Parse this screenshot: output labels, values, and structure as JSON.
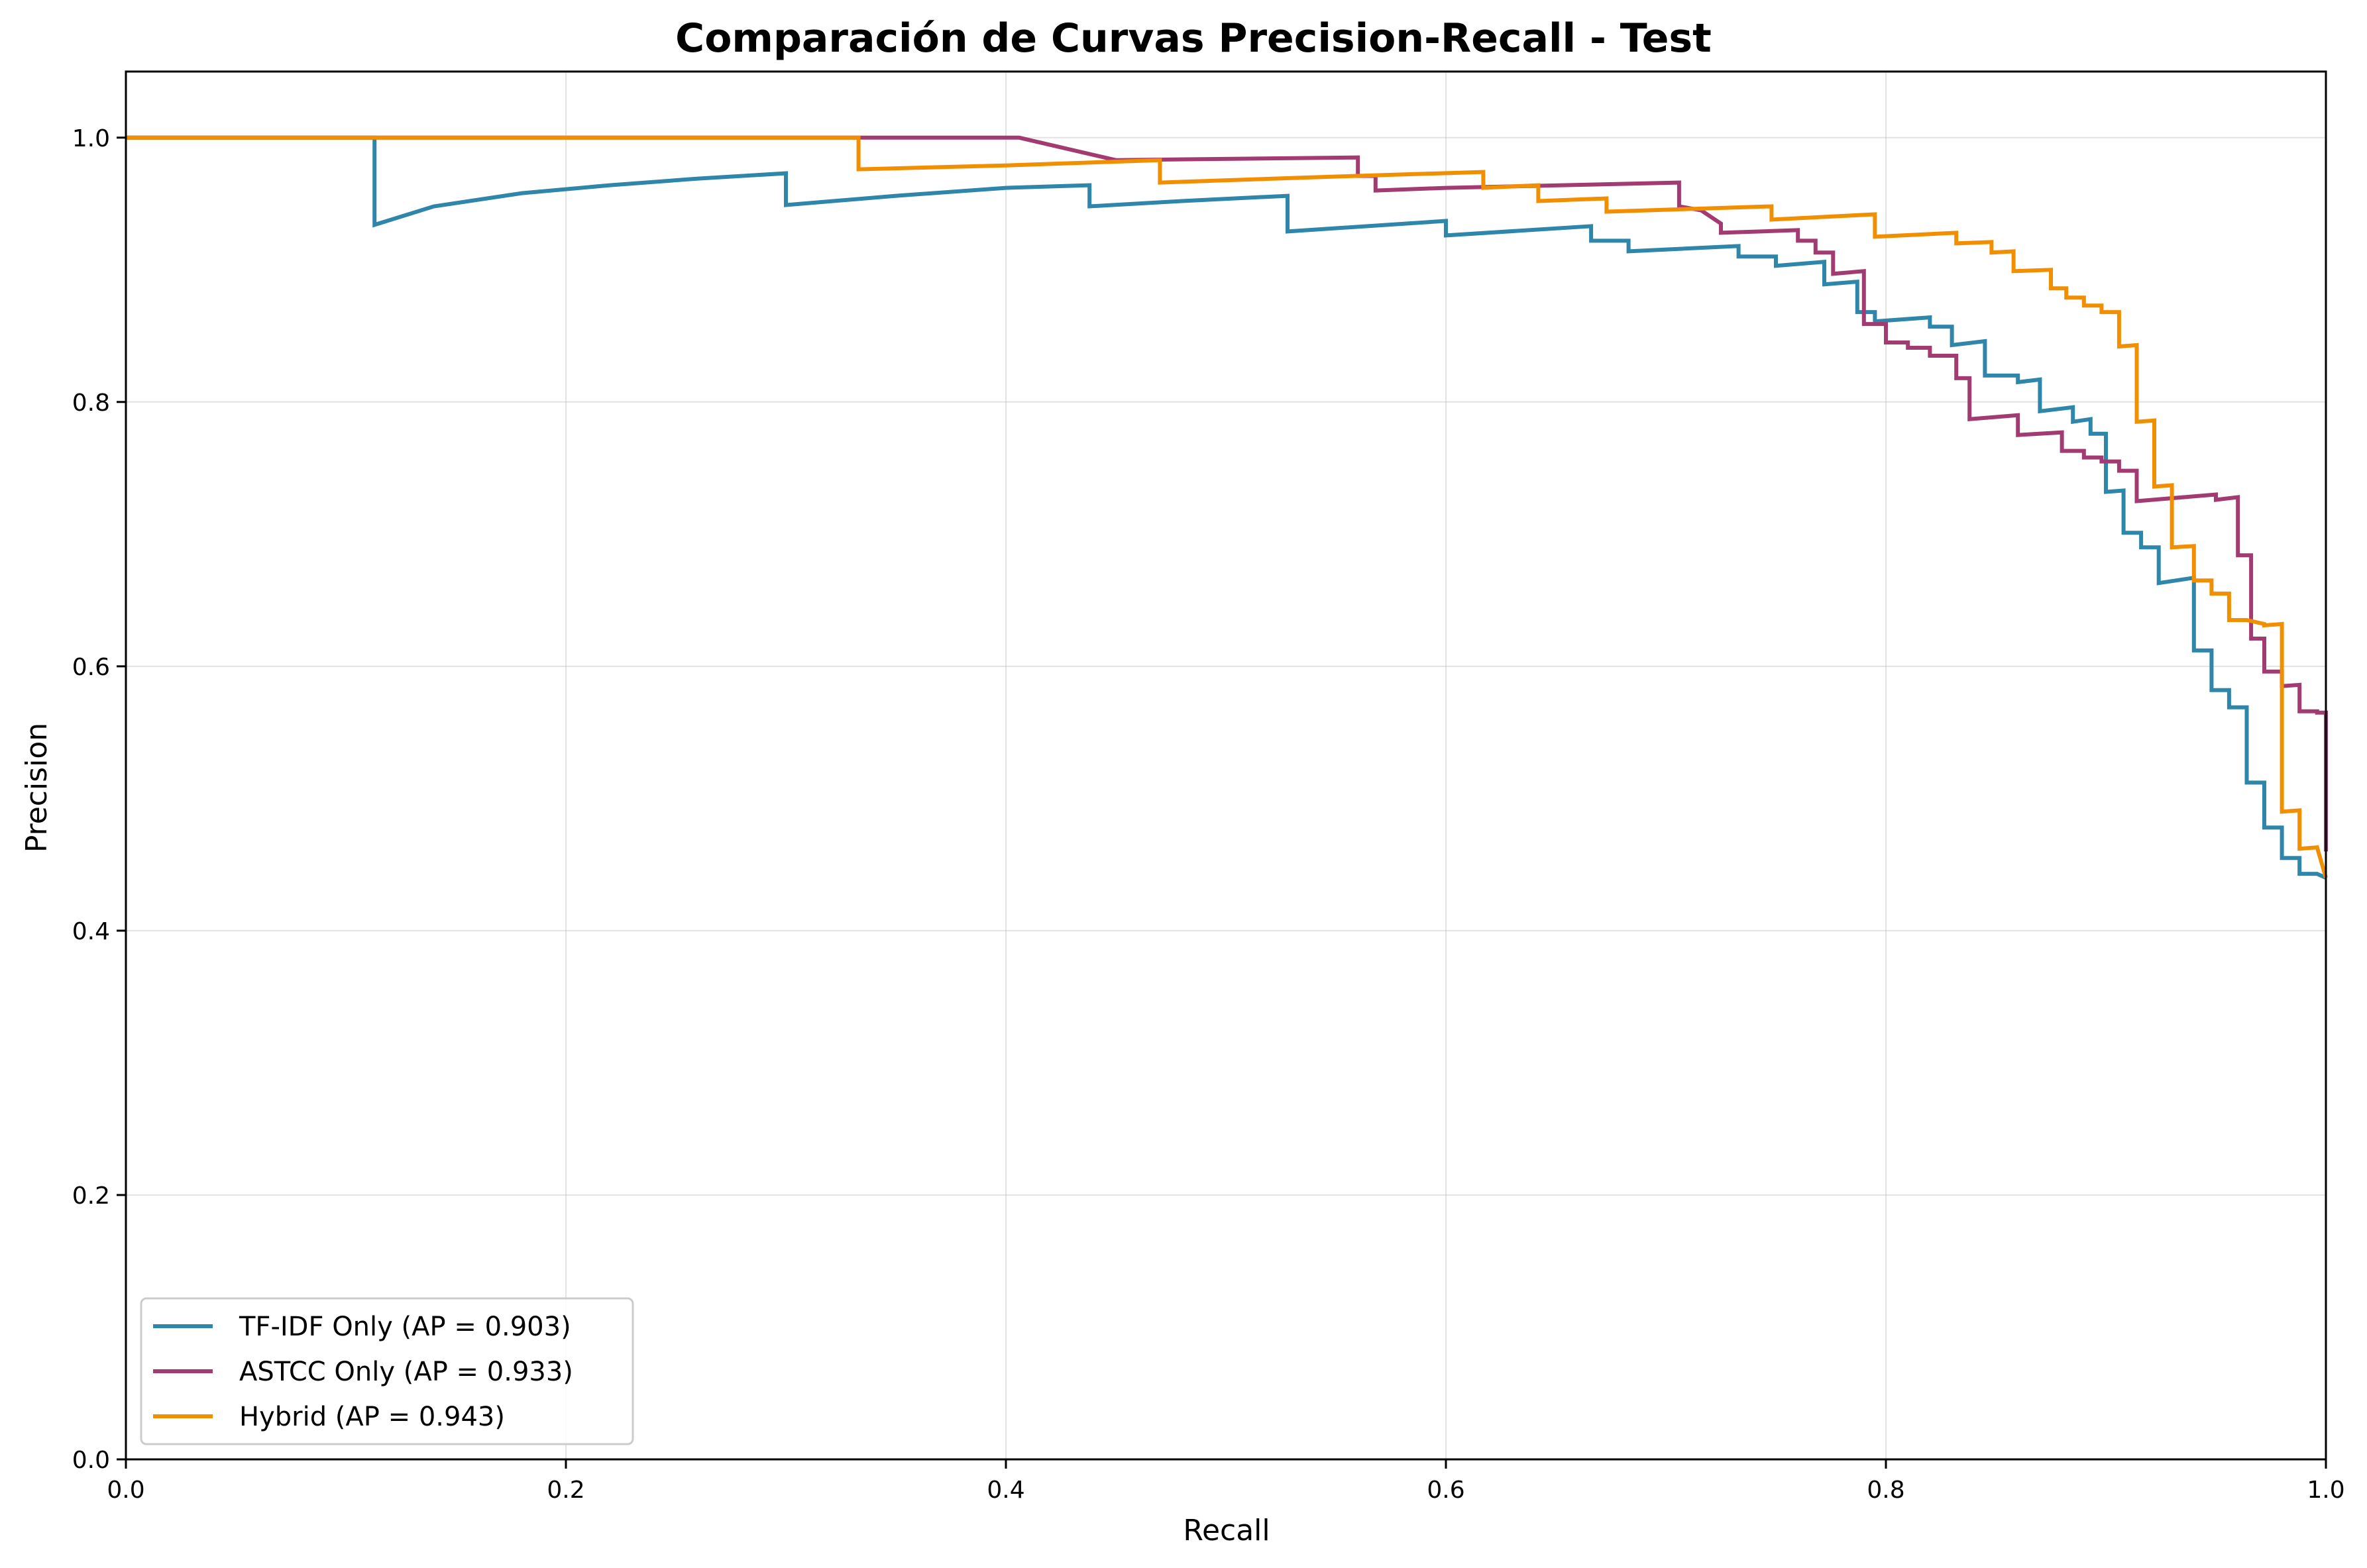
{
  "chart_data": {
    "type": "line",
    "title": "Comparación de Curvas Precision-Recall - Test",
    "xlabel": "Recall",
    "ylabel": "Precision",
    "xlim": [
      0.0,
      1.0
    ],
    "ylim": [
      0.0,
      1.05
    ],
    "xticks": [
      "0.0",
      "0.2",
      "0.4",
      "0.6",
      "0.8",
      "1.0"
    ],
    "yticks": [
      "0.0",
      "0.2",
      "0.4",
      "0.6",
      "0.8",
      "1.0"
    ],
    "grid": true,
    "legend_position": "lower-left",
    "series": [
      {
        "name": "TF-IDF Only (AP = 0.903)",
        "color": "#2e86ab",
        "points": [
          [
            0.0,
            1.0
          ],
          [
            0.113,
            1.0
          ],
          [
            0.113,
            0.934
          ],
          [
            0.14,
            0.948
          ],
          [
            0.18,
            0.958
          ],
          [
            0.22,
            0.964
          ],
          [
            0.26,
            0.969
          ],
          [
            0.3,
            0.973
          ],
          [
            0.3,
            0.949
          ],
          [
            0.35,
            0.956
          ],
          [
            0.4,
            0.962
          ],
          [
            0.438,
            0.964
          ],
          [
            0.438,
            0.948
          ],
          [
            0.48,
            0.952
          ],
          [
            0.528,
            0.956
          ],
          [
            0.528,
            0.929
          ],
          [
            0.6,
            0.937
          ],
          [
            0.6,
            0.926
          ],
          [
            0.666,
            0.933
          ],
          [
            0.666,
            0.922
          ],
          [
            0.683,
            0.922
          ],
          [
            0.683,
            0.914
          ],
          [
            0.733,
            0.918
          ],
          [
            0.733,
            0.91
          ],
          [
            0.75,
            0.91
          ],
          [
            0.75,
            0.903
          ],
          [
            0.772,
            0.906
          ],
          [
            0.772,
            0.889
          ],
          [
            0.787,
            0.891
          ],
          [
            0.787,
            0.868
          ],
          [
            0.795,
            0.868
          ],
          [
            0.795,
            0.861
          ],
          [
            0.82,
            0.864
          ],
          [
            0.82,
            0.857
          ],
          [
            0.83,
            0.857
          ],
          [
            0.83,
            0.843
          ],
          [
            0.845,
            0.846
          ],
          [
            0.845,
            0.82
          ],
          [
            0.86,
            0.82
          ],
          [
            0.86,
            0.815
          ],
          [
            0.87,
            0.817
          ],
          [
            0.87,
            0.793
          ],
          [
            0.885,
            0.796
          ],
          [
            0.885,
            0.785
          ],
          [
            0.893,
            0.787
          ],
          [
            0.893,
            0.776
          ],
          [
            0.9,
            0.776
          ],
          [
            0.9,
            0.732
          ],
          [
            0.908,
            0.733
          ],
          [
            0.908,
            0.701
          ],
          [
            0.916,
            0.701
          ],
          [
            0.916,
            0.69
          ],
          [
            0.924,
            0.69
          ],
          [
            0.924,
            0.663
          ],
          [
            0.94,
            0.667
          ],
          [
            0.94,
            0.612
          ],
          [
            0.948,
            0.612
          ],
          [
            0.948,
            0.582
          ],
          [
            0.956,
            0.582
          ],
          [
            0.956,
            0.569
          ],
          [
            0.964,
            0.569
          ],
          [
            0.964,
            0.512
          ],
          [
            0.972,
            0.512
          ],
          [
            0.972,
            0.478
          ],
          [
            0.98,
            0.478
          ],
          [
            0.98,
            0.455
          ],
          [
            0.988,
            0.455
          ],
          [
            0.988,
            0.443
          ],
          [
            0.996,
            0.443
          ],
          [
            1.0,
            0.44
          ]
        ]
      },
      {
        "name": "ASTCC Only (AP = 0.933)",
        "color": "#a23b72",
        "points": [
          [
            0.0,
            1.0
          ],
          [
            0.406,
            1.0
          ],
          [
            0.45,
            0.983
          ],
          [
            0.56,
            0.985
          ],
          [
            0.56,
            0.971
          ],
          [
            0.568,
            0.971
          ],
          [
            0.568,
            0.96
          ],
          [
            0.6,
            0.962
          ],
          [
            0.706,
            0.966
          ],
          [
            0.706,
            0.948
          ],
          [
            0.716,
            0.945
          ],
          [
            0.725,
            0.935
          ],
          [
            0.725,
            0.928
          ],
          [
            0.76,
            0.93
          ],
          [
            0.76,
            0.922
          ],
          [
            0.768,
            0.922
          ],
          [
            0.768,
            0.913
          ],
          [
            0.776,
            0.913
          ],
          [
            0.776,
            0.897
          ],
          [
            0.79,
            0.899
          ],
          [
            0.79,
            0.859
          ],
          [
            0.8,
            0.859
          ],
          [
            0.8,
            0.845
          ],
          [
            0.81,
            0.845
          ],
          [
            0.81,
            0.841
          ],
          [
            0.82,
            0.841
          ],
          [
            0.82,
            0.835
          ],
          [
            0.832,
            0.835
          ],
          [
            0.832,
            0.818
          ],
          [
            0.838,
            0.818
          ],
          [
            0.838,
            0.787
          ],
          [
            0.86,
            0.79
          ],
          [
            0.86,
            0.775
          ],
          [
            0.88,
            0.777
          ],
          [
            0.88,
            0.763
          ],
          [
            0.89,
            0.763
          ],
          [
            0.89,
            0.758
          ],
          [
            0.898,
            0.758
          ],
          [
            0.898,
            0.755
          ],
          [
            0.906,
            0.755
          ],
          [
            0.906,
            0.748
          ],
          [
            0.914,
            0.748
          ],
          [
            0.914,
            0.725
          ],
          [
            0.95,
            0.73
          ],
          [
            0.95,
            0.726
          ],
          [
            0.96,
            0.728
          ],
          [
            0.96,
            0.684
          ],
          [
            0.966,
            0.684
          ],
          [
            0.966,
            0.621
          ],
          [
            0.972,
            0.621
          ],
          [
            0.972,
            0.596
          ],
          [
            0.98,
            0.596
          ],
          [
            0.98,
            0.585
          ],
          [
            0.988,
            0.586
          ],
          [
            0.988,
            0.566
          ],
          [
            0.996,
            0.566
          ],
          [
            0.996,
            0.565
          ],
          [
            1.0,
            0.565
          ],
          [
            1.0,
            0.46
          ]
        ]
      },
      {
        "name": "Hybrid (AP = 0.943)",
        "color": "#f18f01",
        "points": [
          [
            0.0,
            1.0
          ],
          [
            0.333,
            1.0
          ],
          [
            0.333,
            0.976
          ],
          [
            0.4,
            0.979
          ],
          [
            0.47,
            0.983
          ],
          [
            0.47,
            0.966
          ],
          [
            0.54,
            0.97
          ],
          [
            0.617,
            0.974
          ],
          [
            0.617,
            0.962
          ],
          [
            0.642,
            0.964
          ],
          [
            0.642,
            0.952
          ],
          [
            0.673,
            0.954
          ],
          [
            0.673,
            0.944
          ],
          [
            0.748,
            0.948
          ],
          [
            0.748,
            0.938
          ],
          [
            0.795,
            0.942
          ],
          [
            0.795,
            0.925
          ],
          [
            0.832,
            0.928
          ],
          [
            0.832,
            0.92
          ],
          [
            0.848,
            0.921
          ],
          [
            0.848,
            0.913
          ],
          [
            0.858,
            0.914
          ],
          [
            0.858,
            0.899
          ],
          [
            0.875,
            0.9
          ],
          [
            0.875,
            0.886
          ],
          [
            0.882,
            0.886
          ],
          [
            0.882,
            0.879
          ],
          [
            0.89,
            0.879
          ],
          [
            0.89,
            0.873
          ],
          [
            0.898,
            0.873
          ],
          [
            0.898,
            0.868
          ],
          [
            0.906,
            0.868
          ],
          [
            0.906,
            0.842
          ],
          [
            0.914,
            0.843
          ],
          [
            0.914,
            0.785
          ],
          [
            0.922,
            0.786
          ],
          [
            0.922,
            0.736
          ],
          [
            0.93,
            0.737
          ],
          [
            0.93,
            0.69
          ],
          [
            0.94,
            0.691
          ],
          [
            0.94,
            0.665
          ],
          [
            0.948,
            0.665
          ],
          [
            0.948,
            0.655
          ],
          [
            0.956,
            0.655
          ],
          [
            0.956,
            0.635
          ],
          [
            0.964,
            0.635
          ],
          [
            0.972,
            0.632
          ],
          [
            0.972,
            0.631
          ],
          [
            0.98,
            0.632
          ],
          [
            0.98,
            0.49
          ],
          [
            0.988,
            0.491
          ],
          [
            0.988,
            0.462
          ],
          [
            0.996,
            0.463
          ],
          [
            1.0,
            0.44
          ]
        ]
      }
    ]
  }
}
